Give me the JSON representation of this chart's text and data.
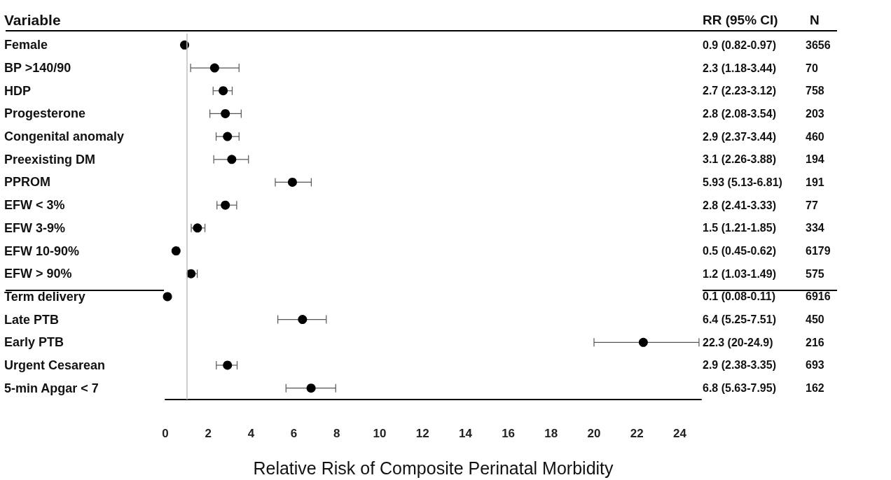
{
  "chart_data": {
    "type": "scatter",
    "orientation": "horizontal",
    "ylabel": "Variable",
    "xlabel": "Relative Risk of Composite Perinatal Morbidity",
    "categories": [
      "Female",
      "BP >140/90",
      "HDP",
      "Progesterone",
      "Congenital anomaly",
      "Preexisting DM",
      "PPROM",
      "EFW < 3%",
      "EFW 3-9%",
      "EFW 10-90%",
      "EFW > 90%",
      "Term delivery",
      "Late PTB",
      "Early PTB",
      "Urgent Cesarean",
      "5-min Apgar < 7"
    ],
    "values": [
      0.9,
      2.3,
      2.7,
      2.8,
      2.9,
      3.1,
      5.93,
      2.8,
      1.5,
      0.5,
      1.2,
      0.1,
      6.4,
      22.3,
      2.9,
      6.8
    ],
    "errors": [
      [
        0.82,
        0.97
      ],
      [
        1.18,
        3.44
      ],
      [
        2.23,
        3.12
      ],
      [
        2.08,
        3.54
      ],
      [
        2.37,
        3.44
      ],
      [
        2.26,
        3.88
      ],
      [
        5.13,
        6.81
      ],
      [
        2.41,
        3.33
      ],
      [
        1.21,
        1.85
      ],
      [
        0.45,
        0.62
      ],
      [
        1.03,
        1.49
      ],
      [
        0.08,
        0.11
      ],
      [
        5.25,
        7.51
      ],
      [
        20,
        24.9
      ],
      [
        2.38,
        3.35
      ],
      [
        5.63,
        7.95
      ]
    ],
    "annotations": [
      "RR (95% CI)",
      "N",
      "0.9 (0.82-0.97)",
      "3656",
      "2.3 (1.18-3.44)",
      "70",
      "2.7 (2.23-3.12)",
      "758",
      "2.8 (2.08-3.54)",
      "203",
      "2.9 (2.37-3.44)",
      "460",
      "3.1 (2.26-3.88)",
      "194",
      "5.93 (5.13-6.81)",
      "191",
      "2.8 (2.41-3.33)",
      "77",
      "1.5 (1.21-1.85)",
      "334",
      "0.5 (0.45-0.62)",
      "6179",
      "1.2 (1.03-1.49)",
      "575",
      "0.1 (0.08-0.11)",
      "6916",
      "6.4 (5.25-7.51)",
      "450",
      "22.3 (20-24.9)",
      "216",
      "2.9 (2.38-3.35)",
      "693",
      "6.8 (5.63-7.95)",
      "162"
    ],
    "color": "#000000",
    "marker": "circle",
    "grid": false,
    "ref_lines": [
      {
        "axis": "x",
        "value": 1,
        "color": "#bfbfbf"
      }
    ],
    "xlim": [
      0,
      25
    ],
    "xticks": [
      0,
      2,
      4,
      6,
      8,
      10,
      12,
      14,
      16,
      18,
      20,
      22,
      24
    ]
  }
}
